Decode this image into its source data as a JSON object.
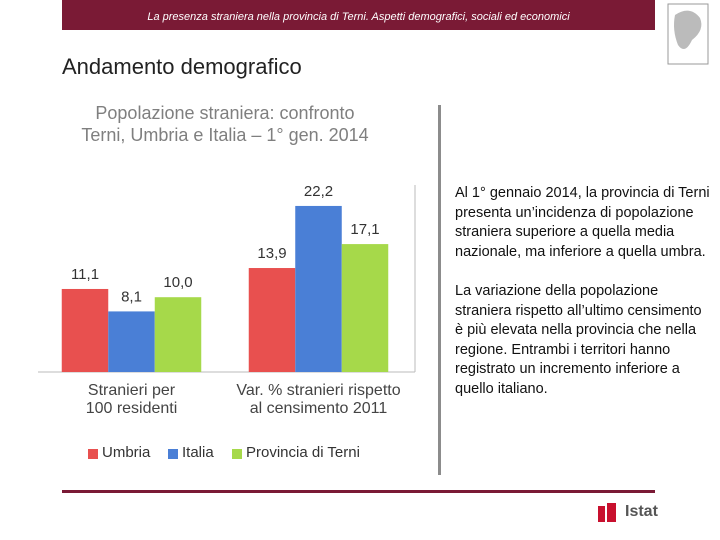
{
  "header": {
    "title": "La presenza straniera nella provincia di Terni. Aspetti demografici, sociali ed economici"
  },
  "slide_title": "Andamento demografico",
  "chart_data": {
    "type": "bar",
    "title": "Popolazione straniera: confronto\nTerni, Umbria e Italia – 1° gen. 2014",
    "categories": [
      "Stranieri per\n100 residenti",
      "Var. % stranieri rispetto\nal censimento 2011"
    ],
    "series": [
      {
        "name": "Umbria",
        "color": "#e8504f",
        "values": [
          11.1,
          13.9
        ],
        "value_labels": [
          "11,1",
          "13,9"
        ]
      },
      {
        "name": "Italia",
        "color": "#4a7fd6",
        "values": [
          8.1,
          22.2
        ],
        "value_labels": [
          "8,1",
          "22,2"
        ]
      },
      {
        "name": "Provincia di Terni",
        "color": "#a6d94a",
        "values": [
          10.0,
          17.1
        ],
        "value_labels": [
          "10,0",
          "17,1"
        ]
      }
    ],
    "ylim": [
      0,
      25
    ],
    "legend": "bottom"
  },
  "text": {
    "paragraphs": [
      "Al 1° gennaio 2014, la provincia di Terni presenta un’incidenza di popolazione straniera superiore a quella media nazionale, ma inferiore a quella umbra.",
      "La variazione della popolazione straniera rispetto all’ultimo censimento è più elevata nella provincia che nella regione. Entrambi i territori hanno registrato un incremento inferiore a quello italiano."
    ]
  },
  "footer": {
    "logo": "Istat"
  }
}
